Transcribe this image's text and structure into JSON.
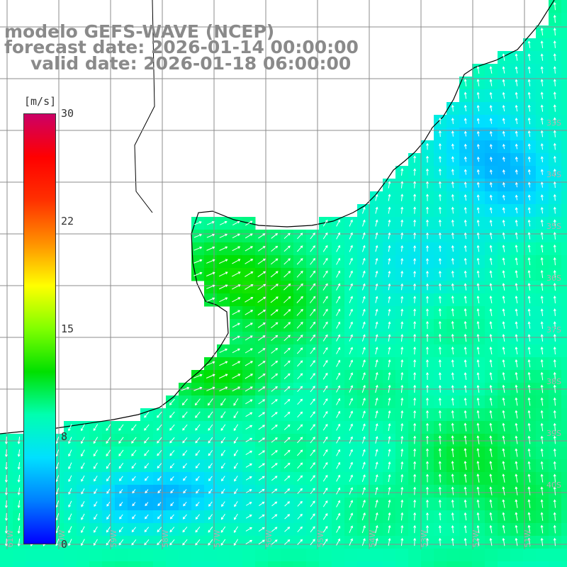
{
  "header": {
    "line1": "modelo GEFS-WAVE (NCEP)",
    "line2": "forecast date: 2026-01-14 00:00:00",
    "line3": "valid date: 2026-01-18 06:00:00"
  },
  "colorbar": {
    "unit": "[m/s]",
    "ticks": [
      "30",
      "22",
      "15",
      "8",
      "0"
    ],
    "tick_values": [
      30,
      22,
      15,
      8,
      0
    ],
    "min": 0,
    "max": 30,
    "colors": [
      "#0000ff",
      "#0080ff",
      "#00e0ff",
      "#00ffb0",
      "#00e000",
      "#80ff00",
      "#ffff00",
      "#ff9000",
      "#ff3000",
      "#ff0000",
      "#cc0066"
    ]
  },
  "lat_labels": [
    "33S",
    "34S",
    "35S",
    "36S",
    "37S",
    "38S",
    "39S",
    "40S"
  ],
  "lon_labels": [
    "61W",
    "60W",
    "59W",
    "58W",
    "57W",
    "56W",
    "55W",
    "54W",
    "53W",
    "52W",
    "51W"
  ],
  "colors": {
    "land": "#ffffff",
    "grid": "#9a9a9a",
    "coast": "#000000",
    "arrow": "#ffffff",
    "title": "#8a8a8a"
  }
}
